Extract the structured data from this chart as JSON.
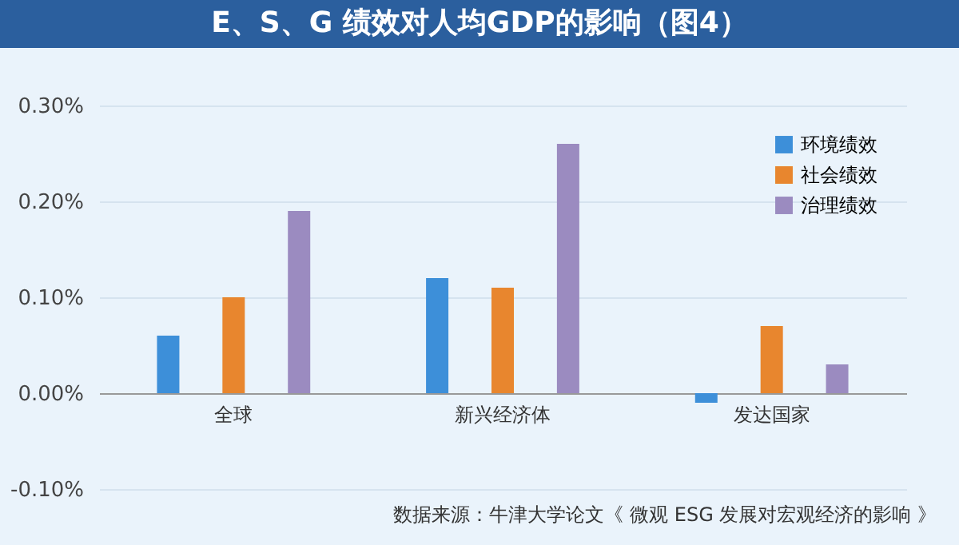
{
  "chart_data": {
    "type": "bar",
    "title": "E、S、G 绩效对人均GDP的影响（图4）",
    "categories": [
      "全球",
      "新兴经济体",
      "发达国家"
    ],
    "series": [
      {
        "name": "环境绩效",
        "color": "#3d8fd9",
        "values": [
          0.06,
          0.12,
          -0.01
        ]
      },
      {
        "name": "社会绩效",
        "color": "#e8862e",
        "values": [
          0.1,
          0.11,
          0.07
        ]
      },
      {
        "name": "治理绩效",
        "color": "#9b8bc0",
        "values": [
          0.19,
          0.26,
          0.03
        ]
      }
    ],
    "ylim": [
      -0.1,
      0.3
    ],
    "yticks": [
      {
        "value": -0.1,
        "label": "-0.10%"
      },
      {
        "value": 0,
        "label": "0.00%"
      },
      {
        "value": 0.1,
        "label": "0.10%"
      },
      {
        "value": 0.2,
        "label": "0.20%"
      },
      {
        "value": 0.3,
        "label": "0.30%"
      }
    ],
    "grid": "y",
    "legend": "top right",
    "annotations": [
      "数据来源：牛津大学论文《 微观 ESG 发展对宏观经济的影响 》"
    ]
  }
}
